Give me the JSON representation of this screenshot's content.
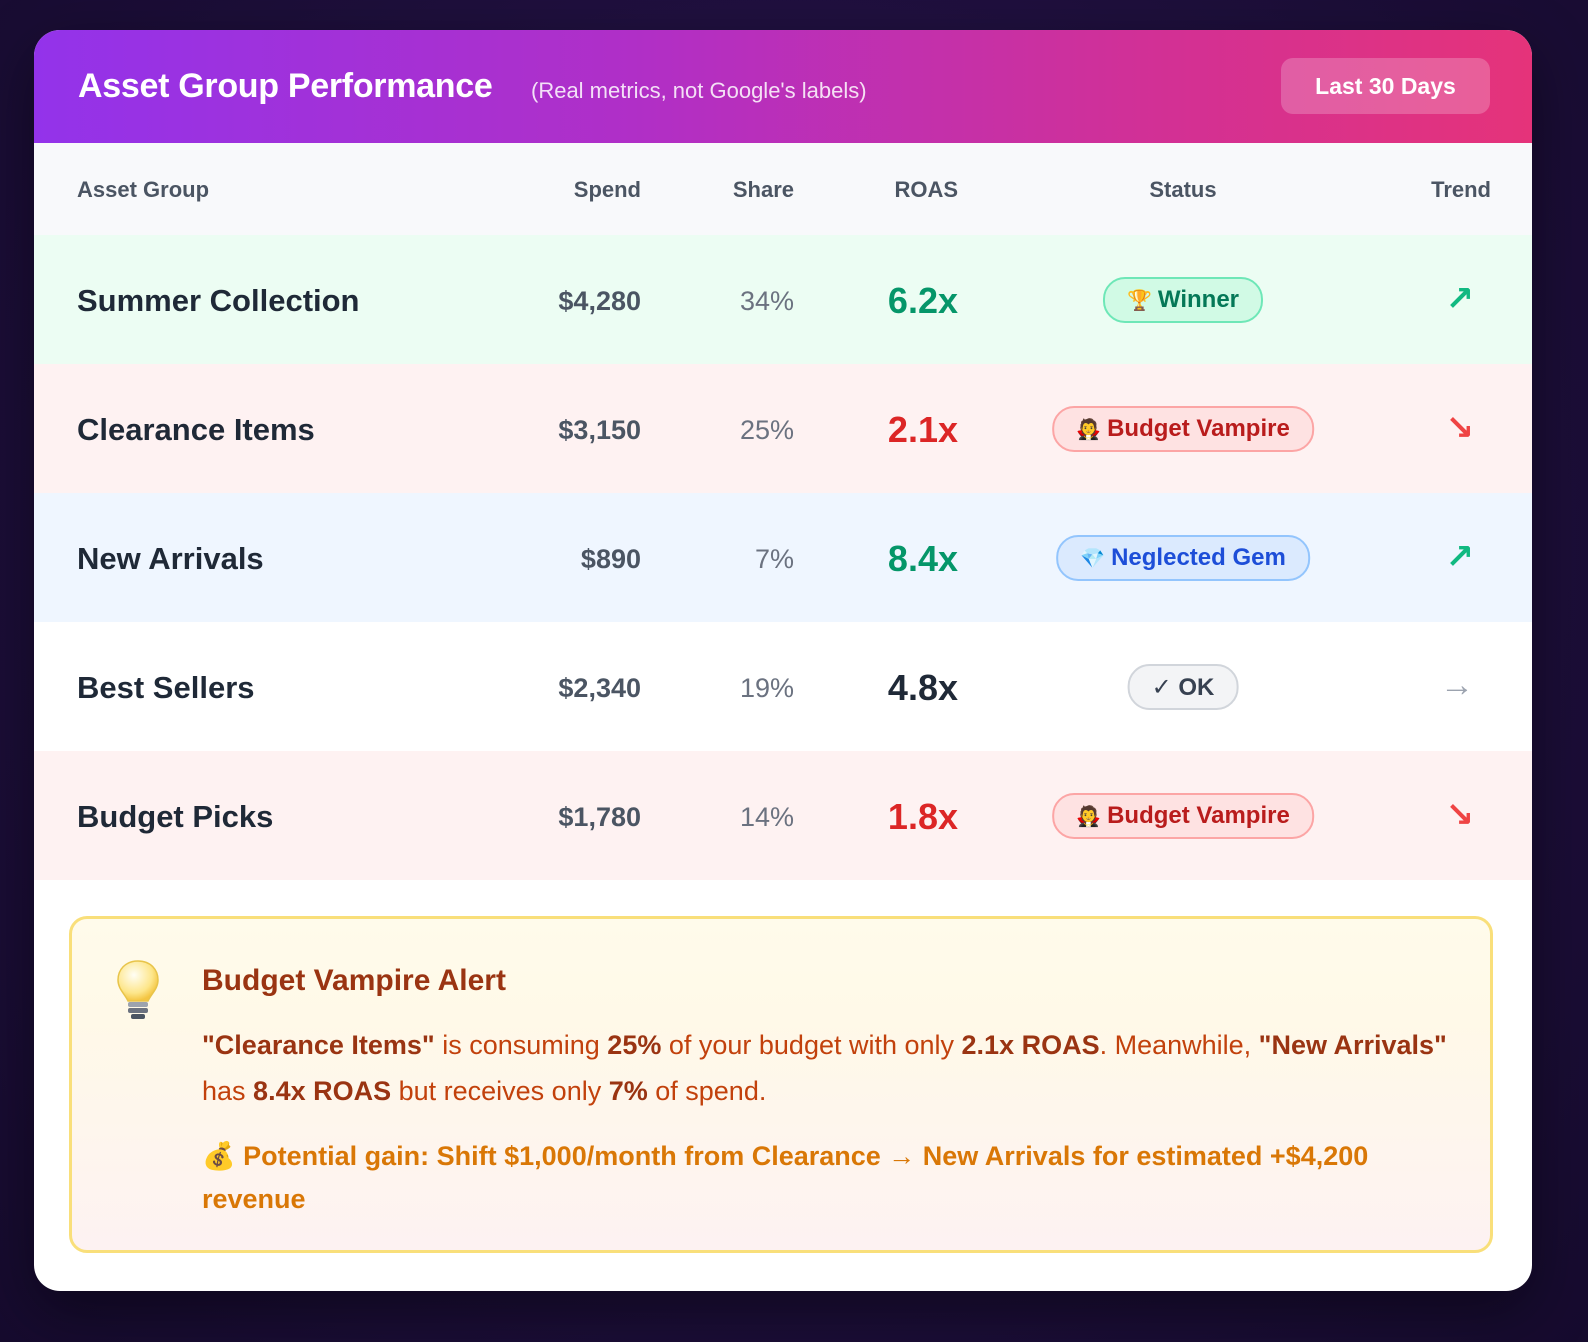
{
  "header": {
    "title": "Asset Group Performance",
    "subtitle": "(Real metrics, not Google's labels)",
    "range_button": "Last 30 Days"
  },
  "columns": {
    "group": "Asset Group",
    "spend": "Spend",
    "share": "Share",
    "roas": "ROAS",
    "status": "Status",
    "trend": "Trend"
  },
  "rows": [
    {
      "name": "Summer Collection",
      "spend": "$4,280",
      "share": "34%",
      "roas": "6.2x",
      "status": "Winner",
      "status_icon": "🏆",
      "trend": "↗",
      "tone": "winner"
    },
    {
      "name": "Clearance Items",
      "spend": "$3,150",
      "share": "25%",
      "roas": "2.1x",
      "status": "Budget Vampire",
      "status_icon": "🧛",
      "trend": "↘",
      "tone": "vampire"
    },
    {
      "name": "New Arrivals",
      "spend": "$890",
      "share": "7%",
      "roas": "8.4x",
      "status": "Neglected Gem",
      "status_icon": "💎",
      "trend": "↗",
      "tone": "gem"
    },
    {
      "name": "Best Sellers",
      "spend": "$2,340",
      "share": "19%",
      "roas": "4.8x",
      "status": "✓ OK",
      "status_icon": "",
      "trend": "→",
      "tone": "ok"
    },
    {
      "name": "Budget Picks",
      "spend": "$1,780",
      "share": "14%",
      "roas": "1.8x",
      "status": "Budget Vampire",
      "status_icon": "🧛",
      "trend": "↘",
      "tone": "vampire"
    }
  ],
  "tones": {
    "winner": {
      "row_bg": "#ecfdf3",
      "roas": "#059669",
      "badge_bg": "#d1fae5",
      "badge_border": "#6ee7b7",
      "badge_text": "#047857",
      "trend": "#10b981"
    },
    "vampire": {
      "row_bg": "#fef2f2",
      "roas": "#dc2626",
      "badge_bg": "#fee2e2",
      "badge_border": "#fca5a5",
      "badge_text": "#b91c1c",
      "trend": "#ef4444"
    },
    "gem": {
      "row_bg": "#eff6ff",
      "roas": "#059669",
      "badge_bg": "#dbeafe",
      "badge_border": "#93c5fd",
      "badge_text": "#1d4ed8",
      "trend": "#10b981"
    },
    "ok": {
      "row_bg": "#ffffff",
      "roas": "#1f2937",
      "badge_bg": "#f3f4f6",
      "badge_border": "#d1d5db",
      "badge_text": "#374151",
      "trend": "#9ca3af"
    }
  },
  "alert": {
    "icon": "lightbulb-icon",
    "title": "Budget Vampire Alert",
    "body": {
      "s1": "\"Clearance Items\"",
      "s2": " is consuming ",
      "s3": "25%",
      "s4": " of your budget with only ",
      "s5": "2.1x ROAS",
      "s6": ". Meanwhile, ",
      "s7": "\"New Arrivals\"",
      "s8": " has ",
      "s9": "8.4x ROAS",
      "s10": " but receives only ",
      "s11": "7%",
      "s12": " of spend."
    },
    "gain_icon": "💰",
    "gain_text": "Potential gain: Shift $1,000/month from Clearance → New Arrivals for estimated +$4,200 revenue"
  }
}
